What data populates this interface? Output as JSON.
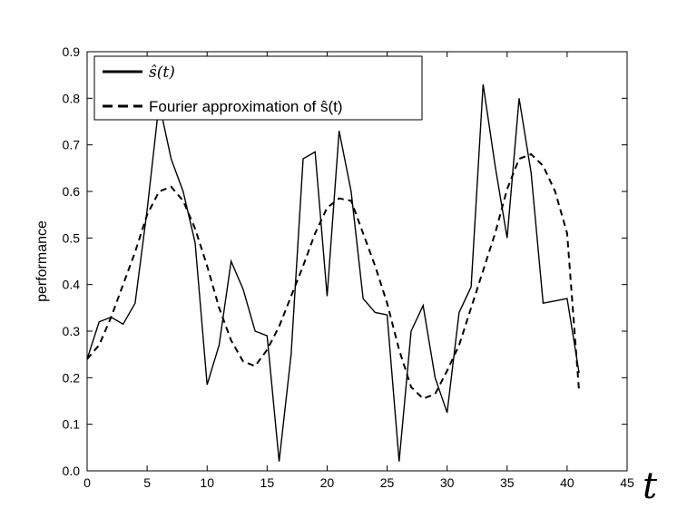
{
  "chart_data": {
    "type": "line",
    "title": "",
    "xlabel": "t",
    "ylabel": "performance",
    "xlim": [
      0,
      45
    ],
    "ylim": [
      0.0,
      0.9
    ],
    "x_ticks": [
      0,
      5,
      10,
      15,
      20,
      25,
      30,
      35,
      40,
      45
    ],
    "x_tick_labels": [
      "0",
      "5",
      "10",
      "15",
      "20",
      "25",
      "30",
      "35",
      "40",
      "45"
    ],
    "y_ticks": [
      0.0,
      0.1,
      0.2,
      0.3,
      0.4,
      0.5,
      0.6,
      0.7,
      0.8,
      0.9
    ],
    "y_tick_labels": [
      "0.0",
      "0.1",
      "0.2",
      "0.3",
      "0.4",
      "0.5",
      "0.6",
      "0.7",
      "0.8",
      "0.9"
    ],
    "grid": false,
    "legend_position": "top-left",
    "series": [
      {
        "name": "ŝ(t)",
        "style": "solid",
        "color": "#000000",
        "x": [
          0,
          1,
          2,
          3,
          4,
          5,
          6,
          7,
          8,
          9,
          10,
          11,
          12,
          13,
          14,
          15,
          16,
          17,
          18,
          19,
          20,
          21,
          22,
          23,
          24,
          25,
          26,
          27,
          28,
          29,
          30,
          31,
          32,
          33,
          34,
          35,
          36,
          37,
          38,
          39,
          40,
          41
        ],
        "y": [
          0.24,
          0.32,
          0.33,
          0.315,
          0.36,
          0.56,
          0.79,
          0.67,
          0.6,
          0.49,
          0.185,
          0.27,
          0.45,
          0.39,
          0.3,
          0.29,
          0.02,
          0.25,
          0.67,
          0.685,
          0.375,
          0.73,
          0.6,
          0.37,
          0.34,
          0.335,
          0.02,
          0.3,
          0.355,
          0.2,
          0.125,
          0.34,
          0.395,
          0.83,
          0.655,
          0.5,
          0.8,
          0.64,
          0.36,
          0.365,
          0.37,
          0.21
        ]
      },
      {
        "name": "Fourier approximation of ŝ(t)",
        "style": "dashed",
        "color": "#000000",
        "x": [
          0,
          1,
          2,
          3,
          4,
          5,
          6,
          7,
          8,
          9,
          10,
          11,
          12,
          13,
          14,
          15,
          16,
          17,
          18,
          19,
          20,
          21,
          22,
          23,
          24,
          25,
          26,
          27,
          28,
          29,
          30,
          31,
          32,
          33,
          34,
          35,
          36,
          37,
          38,
          39,
          40,
          41
        ],
        "y": [
          0.24,
          0.27,
          0.33,
          0.4,
          0.47,
          0.55,
          0.6,
          0.61,
          0.58,
          0.52,
          0.44,
          0.35,
          0.28,
          0.235,
          0.225,
          0.26,
          0.31,
          0.375,
          0.44,
          0.51,
          0.565,
          0.585,
          0.58,
          0.51,
          0.44,
          0.36,
          0.26,
          0.18,
          0.155,
          0.165,
          0.215,
          0.27,
          0.35,
          0.43,
          0.51,
          0.605,
          0.67,
          0.68,
          0.655,
          0.6,
          0.51,
          0.17
        ]
      }
    ]
  }
}
